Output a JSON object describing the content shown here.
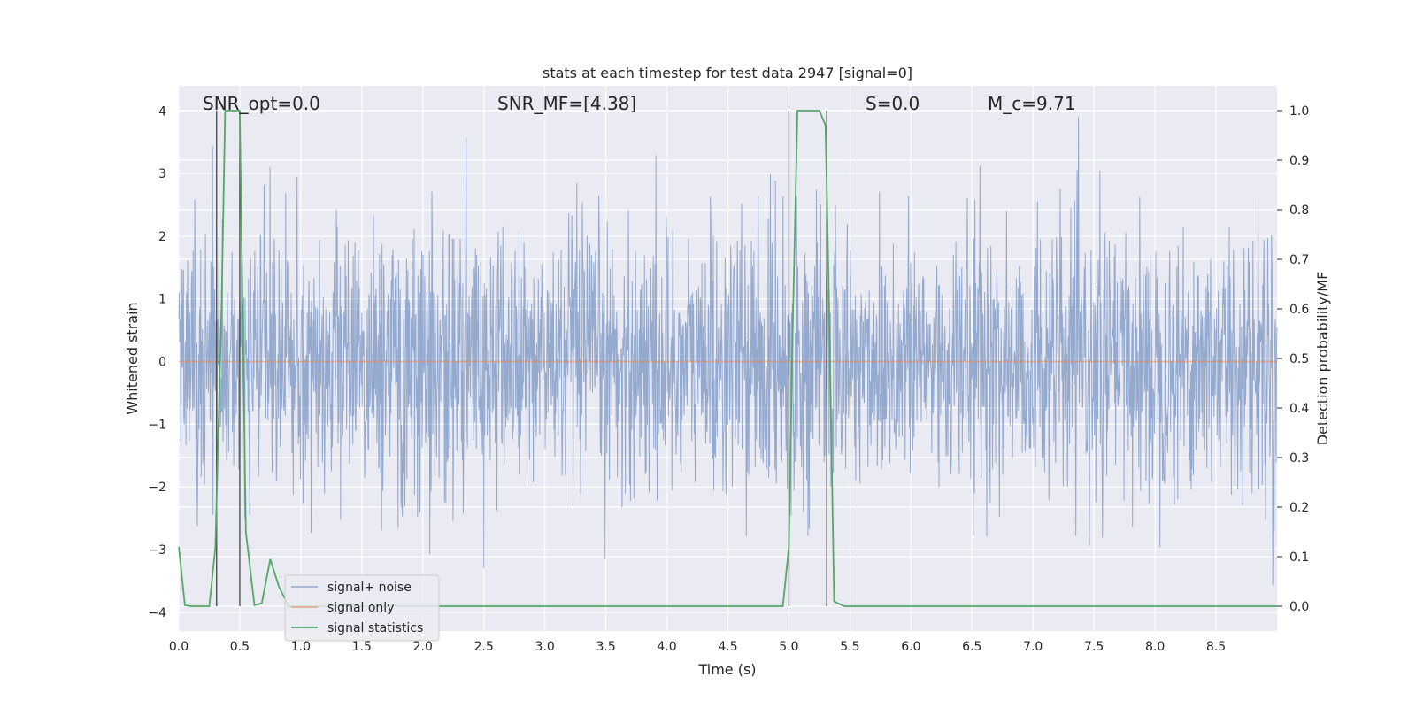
{
  "chart_data": {
    "type": "line",
    "title": "stats at each timestep for test data 2947 [signal=0]",
    "xlabel": "Time (s)",
    "ylabel": "Whitened strain",
    "y2label": "Detection probability/MF",
    "xlim": [
      0,
      9.0
    ],
    "ylim": [
      -4.3,
      4.4
    ],
    "y2lim": [
      -0.05,
      1.05
    ],
    "xticks": [
      0.0,
      0.5,
      1.0,
      1.5,
      2.0,
      2.5,
      3.0,
      3.5,
      4.0,
      4.5,
      5.0,
      5.5,
      6.0,
      6.5,
      7.0,
      7.5,
      8.0,
      8.5
    ],
    "xtick_labels": [
      "0.0",
      "0.5",
      "1.0",
      "1.5",
      "2.0",
      "2.5",
      "3.0",
      "3.5",
      "4.0",
      "4.5",
      "5.0",
      "5.5",
      "6.0",
      "6.5",
      "7.0",
      "7.5",
      "8.0",
      "8.5"
    ],
    "yticks": [
      4,
      3,
      2,
      1,
      0,
      -1,
      -2,
      -3,
      -4
    ],
    "ytick_labels": [
      "4",
      "3",
      "2",
      "1",
      "0",
      "−1",
      "−2",
      "−3",
      "−4"
    ],
    "y2ticks": [
      1.0,
      0.9,
      0.8,
      0.7,
      0.6,
      0.5,
      0.4,
      0.3,
      0.2,
      0.1,
      0.0
    ],
    "y2tick_labels": [
      "1.0",
      "0.9",
      "0.8",
      "0.7",
      "0.6",
      "0.5",
      "0.4",
      "0.3",
      "0.2",
      "0.1",
      "0.0"
    ],
    "grid": true,
    "legend_position": "lower-left",
    "series": [
      {
        "name": "signal+ noise",
        "color": "#4c72b0",
        "style": "noise",
        "amplitude_range": [
          -4.0,
          3.9
        ]
      },
      {
        "name": "signal only",
        "color": "#dd8452",
        "values_constant": 0.0
      },
      {
        "name": "signal statistics",
        "color": "#55a868",
        "axis": "right",
        "x": [
          0.0,
          0.05,
          0.1,
          0.25,
          0.3,
          0.35,
          0.38,
          0.5,
          0.55,
          0.62,
          0.68,
          0.75,
          0.82,
          0.9,
          1.0,
          4.95,
          5.0,
          5.03,
          5.07,
          5.25,
          5.3,
          5.33,
          5.37,
          5.45,
          9.0
        ],
        "values": [
          0.12,
          0.002,
          0.0,
          0.0,
          0.12,
          0.6,
          1.0,
          1.0,
          0.15,
          0.002,
          0.006,
          0.095,
          0.04,
          0.0,
          0.0,
          0.0,
          0.12,
          0.55,
          1.0,
          1.0,
          0.97,
          0.6,
          0.01,
          0.0,
          0.0
        ]
      }
    ],
    "vertical_lines": [
      0.31,
      0.5,
      5.0,
      5.31
    ],
    "annotations": [
      {
        "text": "SNR_opt=0.0",
        "x": 0.2
      },
      {
        "text": "SNR_MF=[4.38]",
        "x": 2.6
      },
      {
        "text": "S=0.0",
        "x": 5.6
      },
      {
        "text": "M_c=9.71",
        "x": 6.6
      }
    ]
  }
}
